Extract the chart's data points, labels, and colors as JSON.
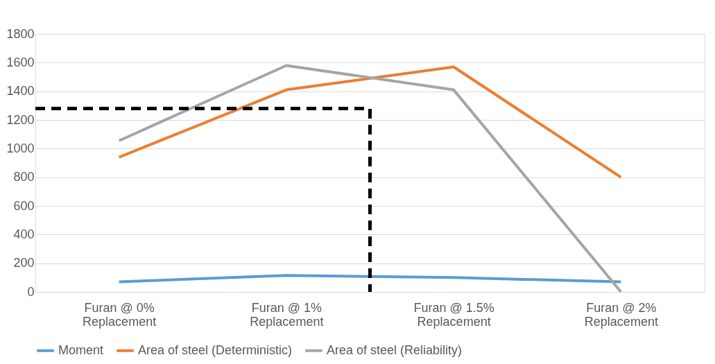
{
  "chart_data": {
    "type": "line",
    "categories": [
      "Furan @ 0% Replacement",
      "Furan @ 1% Replacement",
      "Furan @ 1.5% Replacement",
      "Furan @ 2% Replacement"
    ],
    "series": [
      {
        "name": "Moment",
        "color": "#5b9bd5",
        "values": [
          70,
          115,
          100,
          70
        ]
      },
      {
        "name": "Area of steel (Deterministic)",
        "color": "#ed7d31",
        "values": [
          940,
          1410,
          1570,
          800
        ]
      },
      {
        "name": "Area of steel (Reliability)",
        "color": "#a5a5a5",
        "values": [
          1055,
          1580,
          1410,
          0
        ]
      }
    ],
    "ylim": [
      0,
      1800
    ],
    "yticks": [
      0,
      200,
      400,
      600,
      800,
      1000,
      1200,
      1400,
      1600,
      1800
    ],
    "grid": "y",
    "legend": "bottom",
    "marker": "none",
    "line_style": "solid",
    "ref_lines": [
      {
        "axis": "y",
        "value": 1280,
        "color": "#000000",
        "line_style": "dashed"
      }
    ]
  }
}
